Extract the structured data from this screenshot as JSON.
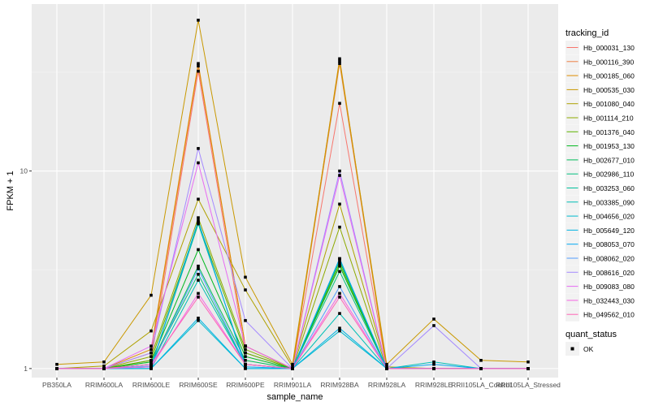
{
  "chart_data": {
    "type": "line",
    "xlabel": "sample_name",
    "ylabel": "FPKM + 1",
    "y_scale": "log10",
    "ylim": [
      0.9,
      70
    ],
    "y_ticks": [
      {
        "value": 1,
        "label": "1"
      },
      {
        "value": 10,
        "label": "10"
      }
    ],
    "grid": true,
    "categories": [
      "PB350LA",
      "RRIM600LA",
      "RRIM600LE",
      "RRIM600SE",
      "RRIM600PE",
      "RRIM901LA",
      "RRIM928BA",
      "RRIM928LA",
      "RRIM928LE",
      "RRII105LA_Control",
      "RRII105LA_Stressed"
    ],
    "series": [
      {
        "name": "Hb_000031_130",
        "color": "#F8766D",
        "values": [
          1,
          1,
          1.1,
          32,
          1.2,
          1,
          22,
          1,
          1,
          1,
          1
        ]
      },
      {
        "name": "Hb_000116_390",
        "color": "#EE8044",
        "values": [
          1,
          1,
          1.2,
          34,
          1.3,
          1,
          35,
          1,
          1,
          1,
          1
        ]
      },
      {
        "name": "Hb_000185_060",
        "color": "#DE8C00",
        "values": [
          1,
          1,
          1.25,
          35,
          1.3,
          1,
          37,
          1,
          1,
          1,
          1
        ]
      },
      {
        "name": "Hb_000535_030",
        "color": "#C99800",
        "values": [
          1.05,
          1.08,
          2.35,
          58,
          2.9,
          1.05,
          36,
          1.05,
          1.78,
          1.1,
          1.08
        ]
      },
      {
        "name": "Hb_001080_040",
        "color": "#AFA100",
        "values": [
          1,
          1.03,
          1.55,
          7.2,
          2.5,
          1.02,
          6.8,
          1.02,
          1,
          1,
          1
        ]
      },
      {
        "name": "Hb_001114_210",
        "color": "#8DAA00",
        "values": [
          1,
          1,
          1.15,
          5.8,
          1.25,
          1,
          5.2,
          1,
          1,
          1,
          1
        ]
      },
      {
        "name": "Hb_001376_040",
        "color": "#5EB300",
        "values": [
          1,
          1,
          1.1,
          5.5,
          1.2,
          1,
          3.4,
          1,
          1,
          1,
          1
        ]
      },
      {
        "name": "Hb_001953_130",
        "color": "#00B81F",
        "values": [
          1,
          1,
          1.08,
          4,
          1.15,
          1,
          3.3,
          1,
          1,
          1,
          1
        ]
      },
      {
        "name": "Hb_002677_010",
        "color": "#00BC59",
        "values": [
          1,
          1,
          1.05,
          3.3,
          1.1,
          1,
          3.5,
          1,
          1,
          1,
          1
        ]
      },
      {
        "name": "Hb_002986_110",
        "color": "#00BF7D",
        "values": [
          1,
          1,
          1.05,
          3.0,
          1.05,
          1,
          3.1,
          1,
          1,
          1,
          1
        ]
      },
      {
        "name": "Hb_003253_060",
        "color": "#00C09B",
        "values": [
          1,
          1,
          1.02,
          5.4,
          1.05,
          1,
          3.6,
          1,
          1,
          1,
          1
        ]
      },
      {
        "name": "Hb_003385_090",
        "color": "#00BFB6",
        "values": [
          1,
          1,
          1,
          2.8,
          1.05,
          1,
          1.9,
          1,
          1.08,
          1,
          1
        ]
      },
      {
        "name": "Hb_004656_020",
        "color": "#00BBCE",
        "values": [
          1,
          1,
          1,
          1.75,
          1,
          1,
          1.55,
          1,
          1,
          1,
          1
        ]
      },
      {
        "name": "Hb_005649_120",
        "color": "#00B3E3",
        "values": [
          1,
          1,
          1,
          1.8,
          1,
          1,
          1.6,
          1,
          1,
          1,
          1
        ]
      },
      {
        "name": "Hb_008053_070",
        "color": "#00A8F3",
        "values": [
          1,
          1,
          1.02,
          5.6,
          1.02,
          1,
          3.6,
          1,
          1.05,
          1,
          1
        ]
      },
      {
        "name": "Hb_008062_020",
        "color": "#529EFF",
        "values": [
          1,
          1,
          1.03,
          3.2,
          1.05,
          1,
          2.6,
          1,
          1,
          1,
          1
        ]
      },
      {
        "name": "Hb_008616_020",
        "color": "#A58AFF",
        "values": [
          1,
          1,
          1.2,
          13,
          1.75,
          1,
          10,
          1,
          1.65,
          1,
          1
        ]
      },
      {
        "name": "Hb_009083_080",
        "color": "#E76BF3",
        "values": [
          1,
          1,
          1.3,
          11,
          1.3,
          1,
          9.5,
          1,
          1,
          1,
          1
        ]
      },
      {
        "name": "Hb_032443_030",
        "color": "#F564E3",
        "values": [
          1,
          1,
          1.02,
          2.4,
          1.05,
          1,
          2.4,
          1,
          1,
          1,
          1
        ]
      },
      {
        "name": "Hb_049562_010",
        "color": "#FF63B6",
        "values": [
          1,
          1,
          1.05,
          2.3,
          1.05,
          1,
          2.3,
          1,
          1,
          1,
          1
        ]
      }
    ]
  },
  "legend": {
    "title": "tracking_id",
    "items": [
      "Hb_000031_130",
      "Hb_000116_390",
      "Hb_000185_060",
      "Hb_000535_030",
      "Hb_001080_040",
      "Hb_001114_210",
      "Hb_001376_040",
      "Hb_001953_130",
      "Hb_002677_010",
      "Hb_002986_110",
      "Hb_003253_060",
      "Hb_003385_090",
      "Hb_004656_020",
      "Hb_005649_120",
      "Hb_008053_070",
      "Hb_008062_020",
      "Hb_008616_020",
      "Hb_009083_080",
      "Hb_032443_030",
      "Hb_049562_010"
    ]
  },
  "quant_legend": {
    "title": "quant_status",
    "items": [
      "OK"
    ]
  },
  "colors": {
    "panel_background": "#EBEBEB",
    "grid_major": "#FFFFFF",
    "point": "#000000"
  }
}
